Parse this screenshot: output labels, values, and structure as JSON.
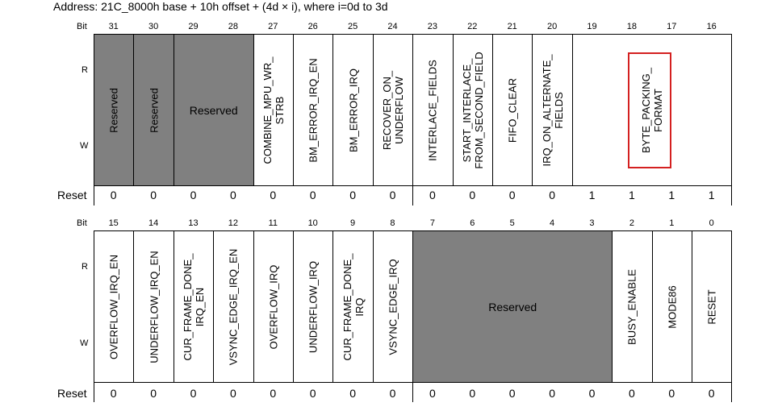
{
  "address": "Address: 21C_8000h base + 10h offset + (4d × i), where i=0d to 3d",
  "labels": {
    "bit": "Bit",
    "read": "R",
    "write": "W",
    "reset": "Reset"
  },
  "colors": {
    "reserved_fill": "#808080",
    "highlight": "#d42020"
  },
  "upper": {
    "bits": [
      "31",
      "30",
      "29",
      "28",
      "27",
      "26",
      "25",
      "24",
      "23",
      "22",
      "21",
      "20",
      "19",
      "18",
      "17",
      "16"
    ],
    "reset": [
      "0",
      "0",
      "0",
      "0",
      "0",
      "0",
      "0",
      "0",
      "0",
      "0",
      "0",
      "0",
      "1",
      "1",
      "1",
      "1"
    ],
    "fields": [
      {
        "key": "reserved-31",
        "start": 0,
        "span": 1,
        "reserved": true,
        "vertical": true,
        "lines": [
          "Reserved"
        ]
      },
      {
        "key": "reserved-30",
        "start": 1,
        "span": 1,
        "reserved": true,
        "vertical": true,
        "lines": [
          "Reserved"
        ]
      },
      {
        "key": "reserved-29-28",
        "start": 2,
        "span": 2,
        "reserved": true,
        "vertical": false,
        "lines": [
          "Reserved"
        ]
      },
      {
        "key": "combine-mpu-wr-strb",
        "start": 4,
        "span": 1,
        "reserved": false,
        "vertical": true,
        "lines": [
          "COMBINE_MPU_WR_",
          "STRB"
        ]
      },
      {
        "key": "bm-error-irq-en",
        "start": 5,
        "span": 1,
        "reserved": false,
        "vertical": true,
        "lines": [
          "BM_ERROR_IRQ_EN"
        ]
      },
      {
        "key": "bm-error-irq",
        "start": 6,
        "span": 1,
        "reserved": false,
        "vertical": true,
        "lines": [
          "BM_ERROR_IRQ"
        ]
      },
      {
        "key": "recover-on-underflow",
        "start": 7,
        "span": 1,
        "reserved": false,
        "vertical": true,
        "lines": [
          "RECOVER_ON_",
          "UNDERFLOW"
        ]
      },
      {
        "key": "interlace-fields",
        "start": 8,
        "span": 1,
        "reserved": false,
        "vertical": true,
        "lines": [
          "INTERLACE_FIELDS"
        ]
      },
      {
        "key": "start-interlace-from-second-field",
        "start": 9,
        "span": 1,
        "reserved": false,
        "vertical": true,
        "lines": [
          "START_INTERLACE_",
          "FROM_SECOND_FIELD"
        ]
      },
      {
        "key": "fifo-clear",
        "start": 10,
        "span": 1,
        "reserved": false,
        "vertical": true,
        "lines": [
          "FIFO_CLEAR"
        ]
      },
      {
        "key": "irq-on-alternate-fields",
        "start": 11,
        "span": 1,
        "reserved": false,
        "vertical": true,
        "lines": [
          "IRQ_ON_ALTERNATE_",
          "FIELDS"
        ]
      },
      {
        "key": "byte-packing-format",
        "start": 12,
        "span": 4,
        "reserved": false,
        "vertical": true,
        "lines": [
          "BYTE_PACKING_",
          "FORMAT"
        ]
      }
    ]
  },
  "lower": {
    "bits": [
      "15",
      "14",
      "13",
      "12",
      "11",
      "10",
      "9",
      "8",
      "7",
      "6",
      "5",
      "4",
      "3",
      "2",
      "1",
      "0"
    ],
    "reset": [
      "0",
      "0",
      "0",
      "0",
      "0",
      "0",
      "0",
      "0",
      "0",
      "0",
      "0",
      "0",
      "0",
      "0",
      "0",
      "0"
    ],
    "fields": [
      {
        "key": "overflow-irq-en",
        "start": 0,
        "span": 1,
        "reserved": false,
        "vertical": true,
        "lines": [
          "OVERFLOW_IRQ_EN"
        ]
      },
      {
        "key": "underflow-irq-en",
        "start": 1,
        "span": 1,
        "reserved": false,
        "vertical": true,
        "lines": [
          "UNDERFLOW_IRQ_EN"
        ]
      },
      {
        "key": "cur-frame-done-irq-en",
        "start": 2,
        "span": 1,
        "reserved": false,
        "vertical": true,
        "lines": [
          "CUR_FRAME_DONE_",
          "IRQ_EN"
        ]
      },
      {
        "key": "vsync-edge-irq-en",
        "start": 3,
        "span": 1,
        "reserved": false,
        "vertical": true,
        "lines": [
          "VSYNC_EDGE_IRQ_EN"
        ]
      },
      {
        "key": "overflow-irq",
        "start": 4,
        "span": 1,
        "reserved": false,
        "vertical": true,
        "lines": [
          "OVERFLOW_IRQ"
        ]
      },
      {
        "key": "underflow-irq",
        "start": 5,
        "span": 1,
        "reserved": false,
        "vertical": true,
        "lines": [
          "UNDERFLOW_IRQ"
        ]
      },
      {
        "key": "cur-frame-done-irq",
        "start": 6,
        "span": 1,
        "reserved": false,
        "vertical": true,
        "lines": [
          "CUR_FRAME_DONE_",
          "IRQ"
        ]
      },
      {
        "key": "vsync-edge-irq",
        "start": 7,
        "span": 1,
        "reserved": false,
        "vertical": true,
        "lines": [
          "VSYNC_EDGE_IRQ"
        ]
      },
      {
        "key": "reserved-7-3",
        "start": 8,
        "span": 5,
        "reserved": true,
        "vertical": false,
        "lines": [
          "Reserved"
        ]
      },
      {
        "key": "busy-enable",
        "start": 13,
        "span": 1,
        "reserved": false,
        "vertical": true,
        "lines": [
          "BUSY_ENABLE"
        ]
      },
      {
        "key": "mode86",
        "start": 14,
        "span": 1,
        "reserved": false,
        "vertical": true,
        "lines": [
          "MODE86"
        ]
      },
      {
        "key": "reset",
        "start": 15,
        "span": 1,
        "reserved": false,
        "vertical": true,
        "lines": [
          "RESET"
        ]
      }
    ]
  }
}
